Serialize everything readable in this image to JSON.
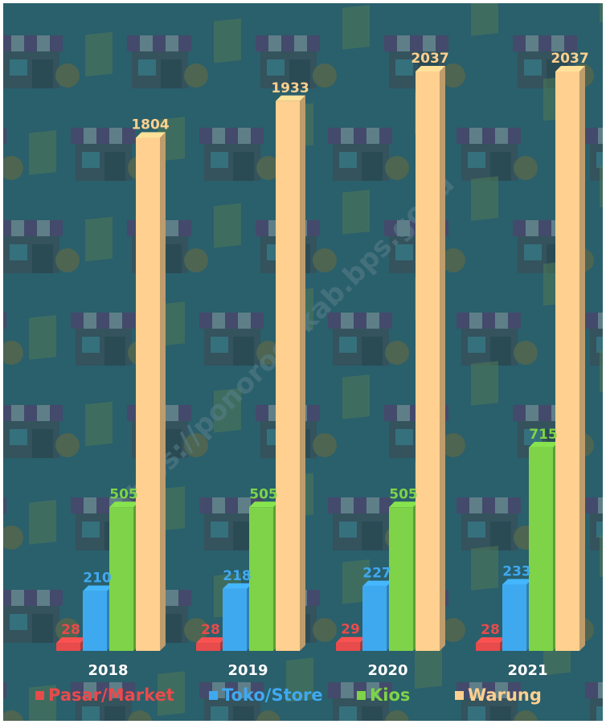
{
  "watermark": "https://ponorogokab.bps.go.id",
  "colors": {
    "background": "#2a5f6c",
    "pasar": "#e84b4b",
    "toko": "#3fa9f0",
    "kios": "#7ed348",
    "warung": "#ffd08f"
  },
  "chart_data": {
    "type": "bar",
    "categories": [
      "2018",
      "2019",
      "2020",
      "2021"
    ],
    "series": [
      {
        "name": "Pasar/Market",
        "values": [
          28,
          28,
          29,
          28
        ]
      },
      {
        "name": "Toko/Store",
        "values": [
          210,
          218,
          227,
          233
        ]
      },
      {
        "name": "Kios",
        "values": [
          505,
          505,
          505,
          715
        ]
      },
      {
        "name": "Warung",
        "values": [
          1804,
          1933,
          2037,
          2037
        ]
      }
    ],
    "legend_position": "bottom",
    "grid": false
  }
}
